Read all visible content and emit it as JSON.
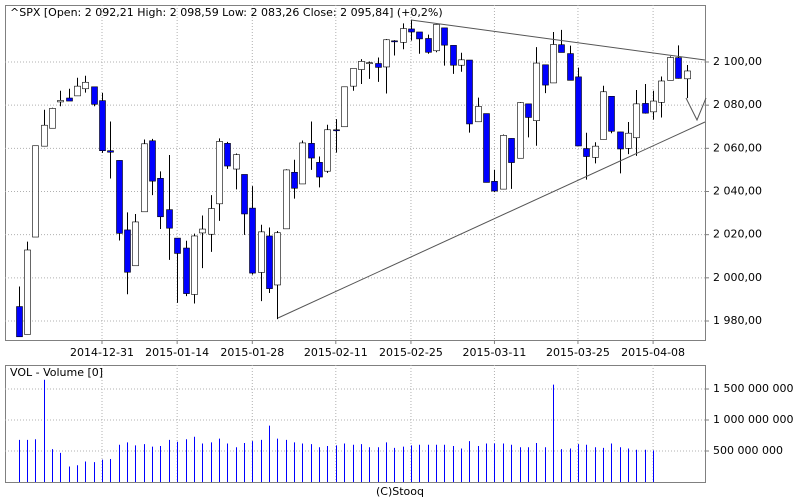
{
  "chart_data": [
    {
      "type": "candlestick",
      "title": "^SPX [Open: 2 092,21  High: 2 098,59  Low: 2 083,26  Close: 2 095,84] (+0,2%)",
      "categories": [
        null,
        null,
        null,
        null,
        null,
        null,
        null,
        null,
        null,
        null,
        "2014-12-31",
        null,
        null,
        null,
        null,
        null,
        null,
        null,
        null,
        "2015-01-14",
        null,
        null,
        null,
        null,
        null,
        null,
        null,
        null,
        "2015-01-28",
        null,
        null,
        null,
        null,
        null,
        null,
        null,
        null,
        null,
        "2015-02-11",
        null,
        null,
        null,
        null,
        null,
        null,
        null,
        null,
        "2015-02-25",
        null,
        null,
        null,
        null,
        null,
        null,
        null,
        null,
        null,
        "2015-03-11",
        null,
        null,
        null,
        null,
        null,
        null,
        null,
        null,
        null,
        "2015-03-25",
        null,
        null,
        null,
        null,
        null,
        null,
        null,
        null,
        "2015-04-08",
        null,
        null,
        null,
        null
      ],
      "open": [
        1986.7,
        1973.8,
        2018.9,
        2061.0,
        2069.3,
        2081.5,
        2083.3,
        2084.3,
        2087.6,
        2088.5,
        2082.1,
        2058.9,
        2054.4,
        2022.2,
        2005.6,
        2030.6,
        2063.5,
        2046.1,
        2031.6,
        2018.4,
        2013.8,
        1992.3,
        2020.8,
        2020.2,
        2034.3,
        2062.3,
        2050.4,
        2047.9,
        2032.3,
        2002.5,
        2019.4,
        1996.7,
        2022.7,
        2048.9,
        2043.5,
        2062.3,
        2053.5,
        2049.4,
        2068.6,
        2070.0,
        2088.8,
        2096.5,
        2099.2,
        2099.3,
        2097.7,
        2109.8,
        2109.1,
        2115.3,
        2113.9,
        2110.9,
        2105.2,
        2115.8,
        2107.7,
        2098.5,
        2100.9,
        2072.3,
        2076.1,
        2044.7,
        2041.1,
        2064.6,
        2055.4,
        2080.6,
        2072.8,
        2098.7,
        2090.3,
        2108.0,
        2103.9,
        2093.1,
        2059.9,
        2055.8,
        2064.1,
        2084.1,
        2067.6,
        2060.0,
        2064.9,
        2080.8,
        2076.9,
        2081.3,
        2091.5,
        2102.0,
        2092.21
      ],
      "high": [
        1996.0,
        2016.8,
        2061.2,
        2077.9,
        2078.8,
        2086.7,
        2087.6,
        2092.7,
        2093.6,
        2088.5,
        2085.7,
        2072.4,
        2054.4,
        2030.3,
        2029.6,
        2064.1,
        2064.4,
        2049.3,
        2056.9,
        2018.4,
        2017.2,
        2020.5,
        2028.9,
        2038.3,
        2064.6,
        2063.0,
        2057.6,
        2047.9,
        2042.5,
        2024.6,
        2023.3,
        2021.7,
        2050.3,
        2054.7,
        2063.6,
        2072.4,
        2056.2,
        2070.9,
        2073.5,
        2088.5,
        2097.0,
        2101.3,
        2100.2,
        2102.1,
        2110.6,
        2110.1,
        2117.9,
        2119.6,
        2113.9,
        2112.7,
        2117.5,
        2115.8,
        2107.7,
        2104.3,
        2100.9,
        2083.5,
        2076.1,
        2050.1,
        2066.4,
        2064.6,
        2081.4,
        2080.6,
        2106.9,
        2098.7,
        2113.9,
        2114.9,
        2107.6,
        2097.4,
        2067.2,
        2062.8,
        2089.0,
        2084.1,
        2067.6,
        2072.2,
        2087.0,
        2089.8,
        2086.7,
        2093.3,
        2102.6,
        2107.7,
        2098.59
      ],
      "low": [
        1972.6,
        1973.8,
        2018.9,
        2061.0,
        2069.3,
        2079.5,
        2081.9,
        2084.3,
        2085.8,
        2079.5,
        2057.9,
        2046.0,
        2017.3,
        1992.4,
        2005.6,
        2030.6,
        2038.3,
        2022.6,
        2008.3,
        1988.4,
        1991.5,
        1988.1,
        2004.5,
        2012.0,
        2026.4,
        2050.5,
        2041.0,
        2019.9,
        2001.5,
        1989.2,
        1993.0,
        1980.9,
        2022.7,
        2036.7,
        2043.5,
        2050.0,
        2041.9,
        2048.6,
        2058.0,
        2070.0,
        2086.7,
        2089.8,
        2092.2,
        2090.8,
        2085.4,
        2103.0,
        2105.9,
        2109.9,
        2103.8,
        2103.8,
        2104.5,
        2098.3,
        2094.5,
        2095.5,
        2067.3,
        2072.2,
        2044.2,
        2039.7,
        2041.1,
        2041.2,
        2055.4,
        2065.1,
        2061.2,
        2085.6,
        2090.3,
        2104.4,
        2091.5,
        2061.1,
        2045.5,
        2053.0,
        2064.1,
        2067.0,
        2048.4,
        2057.3,
        2056.5,
        2076.1,
        2073.3,
        2074.3,
        2091.5,
        2092.3,
        2083.26
      ],
      "close": [
        1972.7,
        2012.9,
        2061.2,
        2070.7,
        2078.5,
        2082.2,
        2081.9,
        2088.8,
        2090.6,
        2080.4,
        2058.9,
        2058.2,
        2020.6,
        2002.6,
        2025.9,
        2062.1,
        2044.8,
        2028.3,
        2023.0,
        2011.3,
        1992.7,
        2019.4,
        2022.6,
        2032.1,
        2063.2,
        2051.8,
        2057.1,
        2029.6,
        2002.2,
        2021.3,
        1995.0,
        2020.9,
        2050.0,
        2041.5,
        2062.5,
        2055.5,
        2046.7,
        2068.6,
        2068.5,
        2088.5,
        2097.0,
        2100.3,
        2099.7,
        2097.5,
        2110.3,
        2109.7,
        2115.5,
        2113.9,
        2110.7,
        2104.5,
        2117.4,
        2107.8,
        2098.5,
        2101.0,
        2071.3,
        2079.4,
        2044.2,
        2040.2,
        2066.0,
        2053.4,
        2081.2,
        2074.3,
        2099.5,
        2089.3,
        2108.1,
        2104.4,
        2091.5,
        2061.1,
        2056.2,
        2061.0,
        2086.2,
        2067.9,
        2059.7,
        2067.0,
        2080.6,
        2076.3,
        2081.9,
        2091.2,
        2102.1,
        2092.4,
        2095.84
      ],
      "up_color": "#ffffff",
      "down_color": "#0000ff",
      "ylim": [
        1971.2,
        2126.4
      ],
      "yticks": [
        {
          "value": 1980,
          "label": "1 980,00"
        },
        {
          "value": 2000,
          "label": "2 000,00"
        },
        {
          "value": 2020,
          "label": "2 020,00"
        },
        {
          "value": 2040,
          "label": "2 040,00"
        },
        {
          "value": 2060,
          "label": "2 060,00"
        },
        {
          "value": 2080,
          "label": "2 080,00"
        },
        {
          "value": 2100,
          "label": "2 100,00"
        }
      ],
      "grid": true
    },
    {
      "type": "bar",
      "title": "VOL - Volume [0]",
      "color": "#0000ff",
      "values": [
        680000000,
        680000000,
        690000000,
        1650000000,
        530000000,
        470000000,
        250000000,
        270000000,
        330000000,
        320000000,
        360000000,
        370000000,
        600000000,
        640000000,
        590000000,
        610000000,
        570000000,
        580000000,
        680000000,
        650000000,
        690000000,
        730000000,
        620000000,
        640000000,
        700000000,
        620000000,
        560000000,
        630000000,
        660000000,
        680000000,
        910000000,
        700000000,
        680000000,
        640000000,
        620000000,
        610000000,
        560000000,
        580000000,
        590000000,
        620000000,
        600000000,
        610000000,
        560000000,
        560000000,
        640000000,
        550000000,
        570000000,
        590000000,
        600000000,
        600000000,
        600000000,
        600000000,
        580000000,
        540000000,
        660000000,
        580000000,
        620000000,
        620000000,
        620000000,
        600000000,
        560000000,
        560000000,
        630000000,
        560000000,
        1570000000,
        530000000,
        540000000,
        610000000,
        600000000,
        560000000,
        550000000,
        620000000,
        560000000,
        540000000,
        520000000,
        520000000,
        510000000,
        null,
        null,
        null,
        null
      ],
      "ylim": [
        0,
        1887000000
      ],
      "yticks": [
        {
          "value": 500000000,
          "label": "500 000 000"
        },
        {
          "value": 1000000000,
          "label": "1 000 000 000"
        },
        {
          "value": 1500000000,
          "label": "1 500 000 000"
        }
      ],
      "grid": true
    }
  ],
  "footer": "(C)Stooq"
}
